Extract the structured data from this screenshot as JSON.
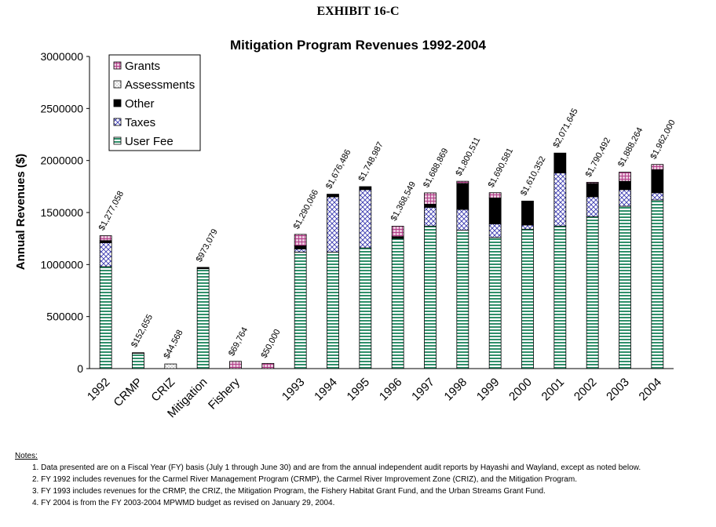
{
  "exhibit_label": "EXHIBIT 16-C",
  "colors": {
    "grants": "#c0589a",
    "assessments": "#d8d8d8",
    "other": "#000000",
    "taxes": "#3a3ab0",
    "user_fee": "#2f8f6a"
  },
  "chart_data": {
    "type": "bar",
    "stacked": true,
    "title": "Mitigation Program Revenues 1992-2004",
    "xlabel": "",
    "ylabel": "Annual Revenues ($)",
    "ylim": [
      0,
      3000000
    ],
    "yticks": [
      "0",
      "500000",
      "1000000",
      "1500000",
      "2000000",
      "2500000",
      "3000000"
    ],
    "grid": false,
    "legend_position": "top-left",
    "categories": [
      "1992",
      "CRMP",
      "CRIZ",
      "Mitigation",
      "Fishery",
      "",
      "1993",
      "1994",
      "1995",
      "1996",
      "1997",
      "1998",
      "1999",
      "2000",
      "2001",
      "2002",
      "2003",
      "2004"
    ],
    "totals_labels": [
      "$1,277,058",
      "$152,655",
      "$44,568",
      "$973,079",
      "$69,764",
      "$50,000",
      "$1,290,066",
      "$1,676,486",
      "$1,748,987",
      "$1,368,549",
      "$1,688,869",
      "$1,800,511",
      "$1,690,581",
      "$1,610,352",
      "$2,071,645",
      "$1,790,492",
      "$1,888,264",
      "$1,962,000"
    ],
    "series": [
      {
        "name": "User Fee",
        "values": [
          980000,
          150000,
          0,
          960000,
          0,
          0,
          1120000,
          1120000,
          1160000,
          1250000,
          1370000,
          1330000,
          1260000,
          1340000,
          1370000,
          1460000,
          1560000,
          1620000
        ]
      },
      {
        "name": "Taxes",
        "values": [
          230000,
          0,
          0,
          0,
          0,
          0,
          30000,
          530000,
          560000,
          0,
          180000,
          200000,
          130000,
          40000,
          510000,
          190000,
          160000,
          70000
        ]
      },
      {
        "name": "Other",
        "values": [
          20000,
          2655,
          0,
          13079,
          0,
          0,
          30000,
          26486,
          28987,
          18549,
          30000,
          250000,
          250000,
          230352,
          191645,
          130000,
          80000,
          222000
        ]
      },
      {
        "name": "Assessments",
        "values": [
          0,
          0,
          44568,
          0,
          0,
          0,
          0,
          0,
          0,
          0,
          0,
          0,
          0,
          0,
          0,
          0,
          0,
          0
        ]
      },
      {
        "name": "Grants",
        "values": [
          47058,
          0,
          0,
          0,
          69764,
          50000,
          110066,
          0,
          0,
          100000,
          108869,
          20511,
          50581,
          0,
          0,
          10492,
          88264,
          50000
        ]
      }
    ]
  },
  "notes": {
    "heading": "Notes:",
    "items": [
      "1. Data presented are on a Fiscal Year (FY) basis (July 1 through June 30) and are from the annual independent audit reports by Hayashi and Wayland, except as noted below.",
      "2. FY 1992 includes revenues for  the Carmel River Management Program (CRMP), the Carmel River Improvement Zone (CRIZ), and the Mitigation Program.",
      "3. FY 1993 includes revenues for  the CRMP, the CRIZ, the Mitigation Program, the Fishery Habitat Grant Fund, and the Urban Streams Grant Fund.",
      "4. FY 2004 is from the FY 2003-2004 MPWMD budget as revised on January 29, 2004."
    ]
  }
}
